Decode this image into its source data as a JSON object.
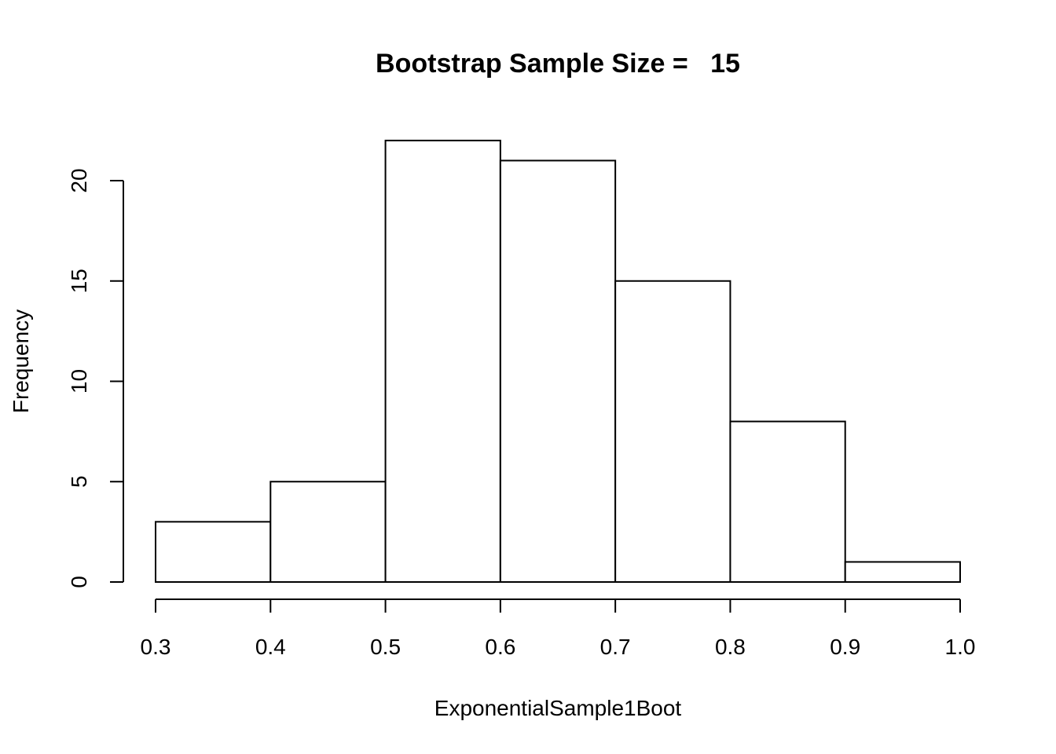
{
  "chart_data": {
    "type": "bar",
    "subtype": "histogram",
    "title": "Bootstrap Sample Size =   15",
    "xlabel": "ExponentialSample1Boot",
    "ylabel": "Frequency",
    "bins": [
      {
        "start": 0.3,
        "end": 0.4,
        "count": 3
      },
      {
        "start": 0.4,
        "end": 0.5,
        "count": 5
      },
      {
        "start": 0.5,
        "end": 0.6,
        "count": 22
      },
      {
        "start": 0.6,
        "end": 0.7,
        "count": 21
      },
      {
        "start": 0.7,
        "end": 0.8,
        "count": 15
      },
      {
        "start": 0.8,
        "end": 0.9,
        "count": 8
      },
      {
        "start": 0.9,
        "end": 1.0,
        "count": 1
      }
    ],
    "xlim": [
      0.3,
      1.0
    ],
    "ylim": [
      0,
      22
    ],
    "x_ticks": [
      {
        "value": 0.3,
        "label": "0.3"
      },
      {
        "value": 0.4,
        "label": "0.4"
      },
      {
        "value": 0.5,
        "label": "0.5"
      },
      {
        "value": 0.6,
        "label": "0.6"
      },
      {
        "value": 0.7,
        "label": "0.7"
      },
      {
        "value": 0.8,
        "label": "0.8"
      },
      {
        "value": 0.9,
        "label": "0.9"
      },
      {
        "value": 1.0,
        "label": "1.0"
      }
    ],
    "y_ticks": [
      {
        "value": 0,
        "label": "0"
      },
      {
        "value": 5,
        "label": "5"
      },
      {
        "value": 10,
        "label": "10"
      },
      {
        "value": 15,
        "label": "15"
      },
      {
        "value": 20,
        "label": "20"
      }
    ],
    "grid": false,
    "legend": "none",
    "bar_fill": "#ffffff",
    "bar_stroke": "#000000"
  }
}
